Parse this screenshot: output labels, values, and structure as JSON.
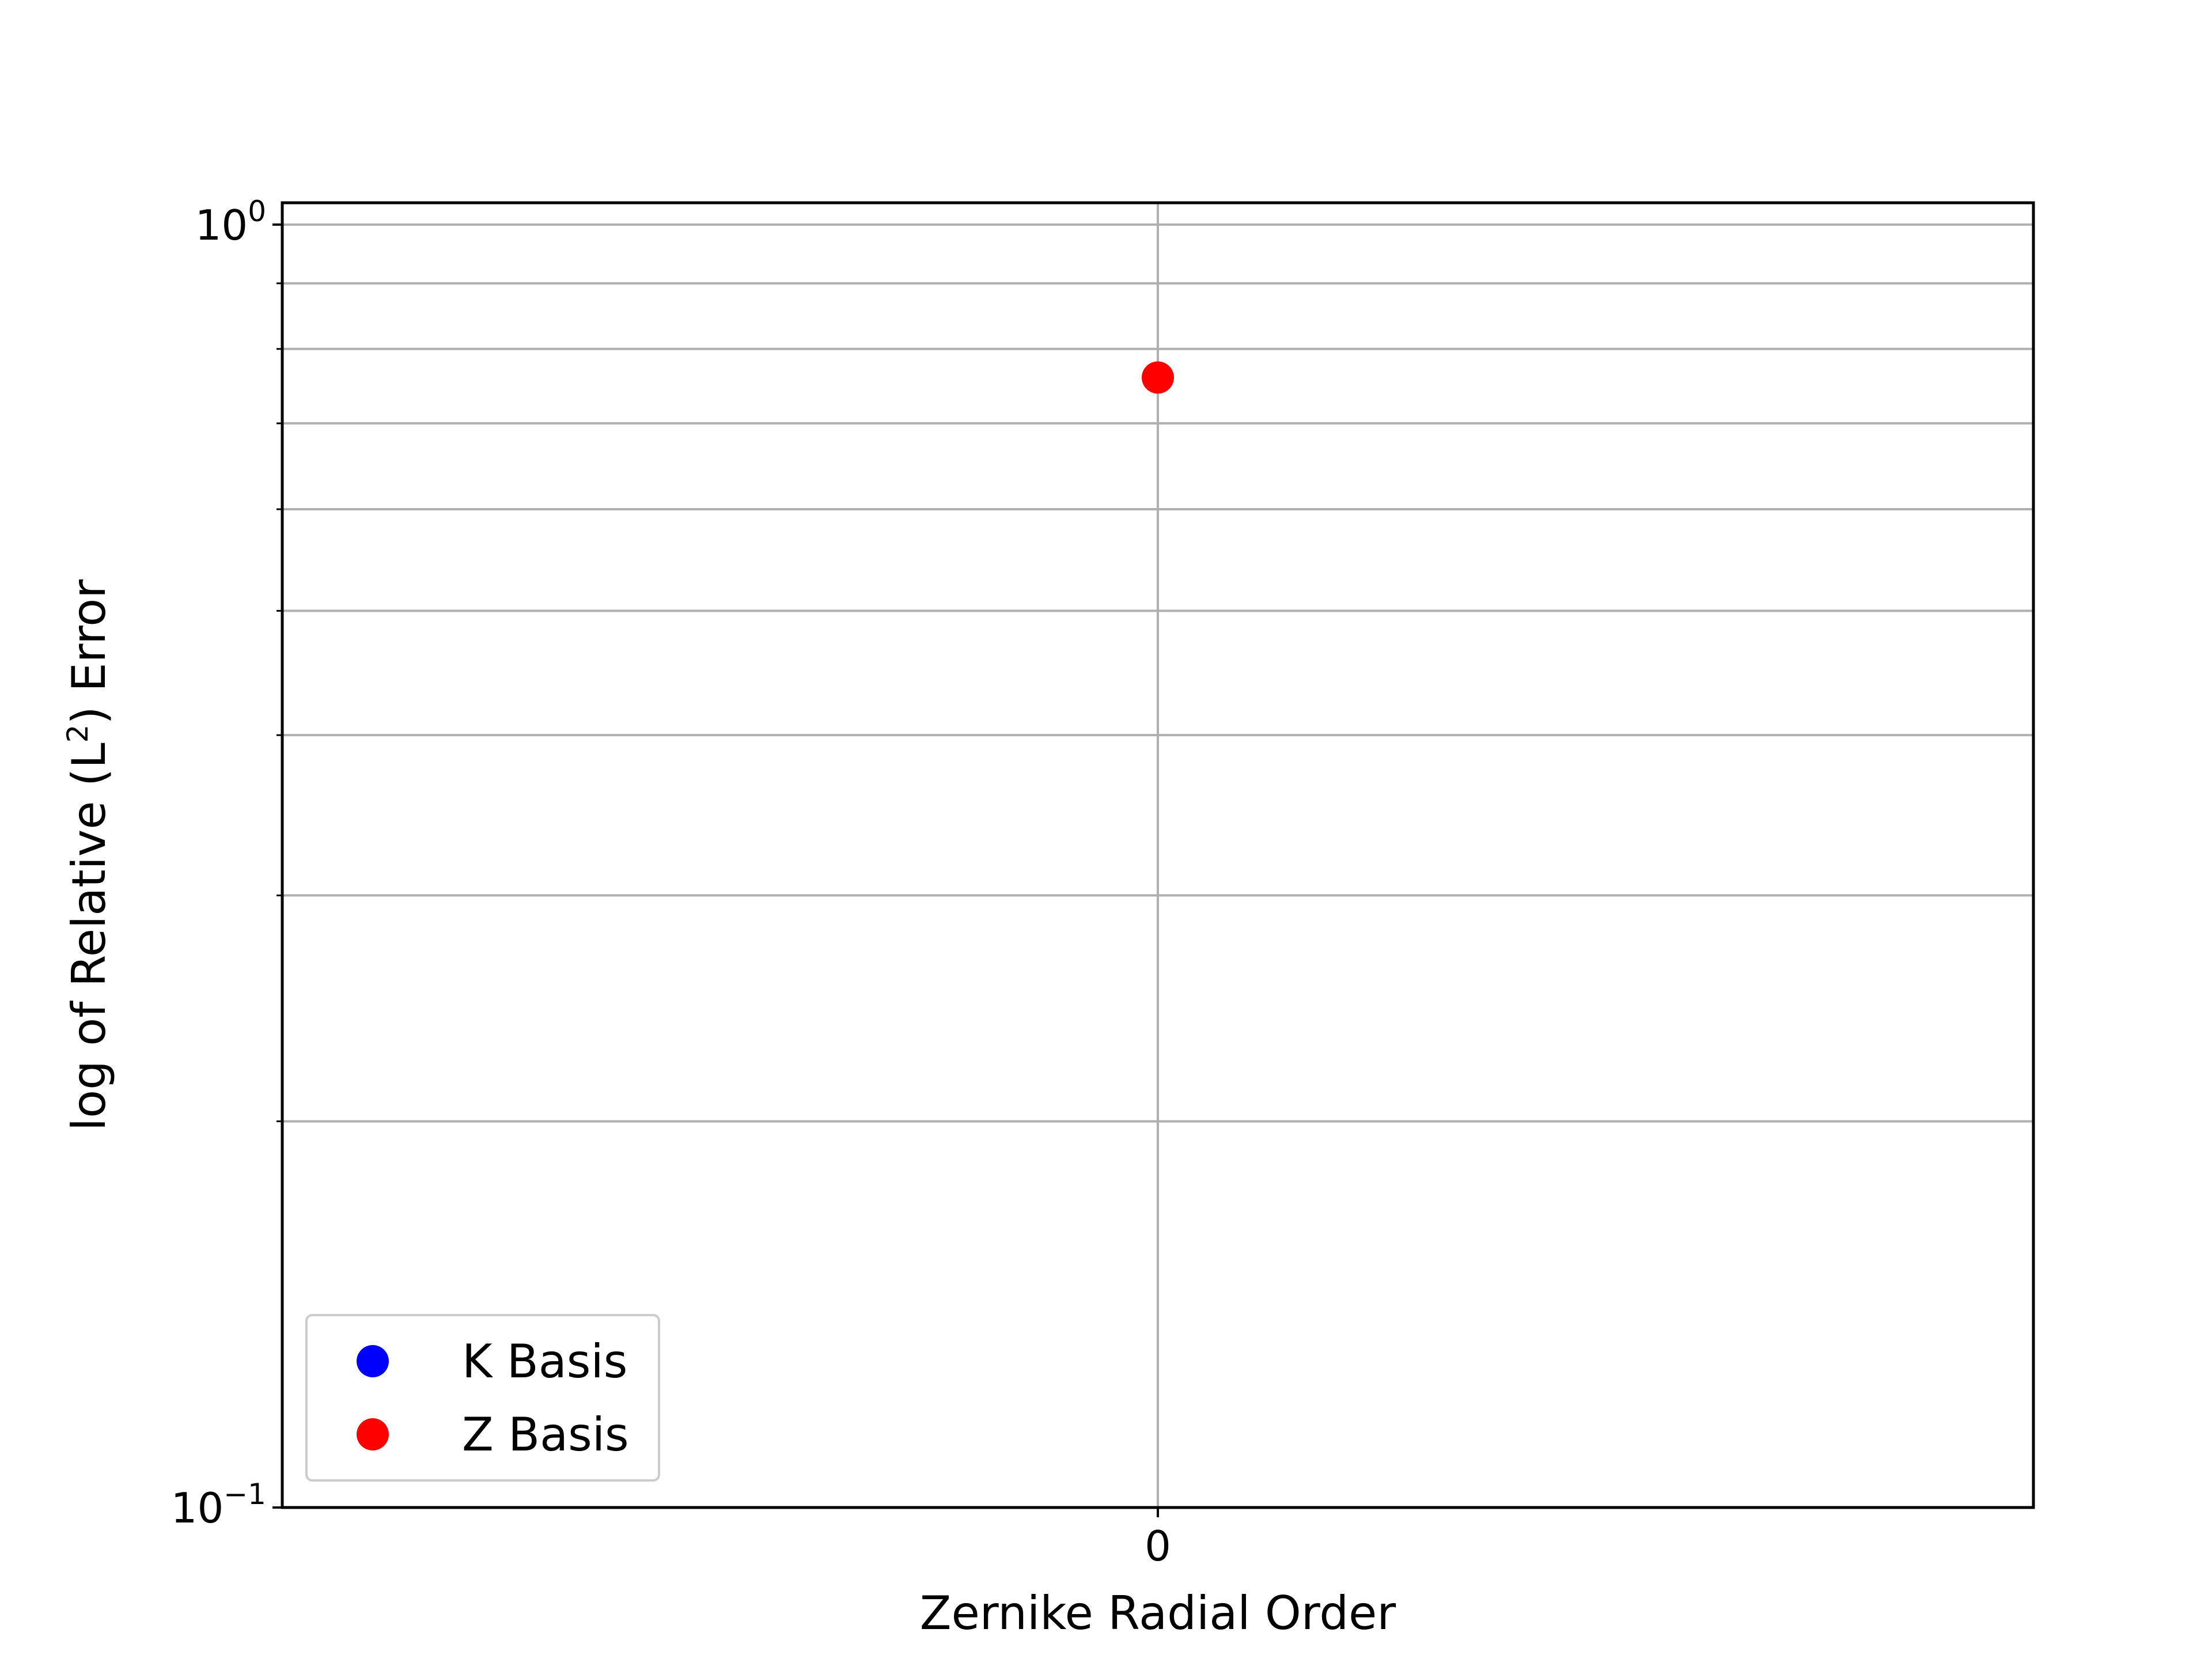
{
  "chart_data": {
    "type": "scatter",
    "xlabel": "Zernike Radial Order",
    "ylabel": "log of Relative (L²) Error",
    "ylabel_prefix": "log of Relative (L",
    "ylabel_sup": "2",
    "ylabel_suffix": ") Error",
    "yscale": "log",
    "ylim": [
      0.1,
      1.04
    ],
    "xlim": [
      -0.5,
      0.5
    ],
    "x_ticks": [
      {
        "value": 0,
        "label": "0"
      }
    ],
    "y_major_ticks": [
      {
        "value": 1,
        "base": "10",
        "exp": "0"
      },
      {
        "value": 0.1,
        "base": "10",
        "exp": "−1"
      }
    ],
    "y_minor_ticks": [
      0.2,
      0.3,
      0.4,
      0.5,
      0.6,
      0.7,
      0.8,
      0.9
    ],
    "grid": true,
    "legend_position": "lower-left",
    "series": [
      {
        "name": "K Basis",
        "color": "#0000ff",
        "points": []
      },
      {
        "name": "Z Basis",
        "color": "#ff0000",
        "points": [
          {
            "x": 0,
            "y": 0.76
          }
        ]
      }
    ]
  }
}
